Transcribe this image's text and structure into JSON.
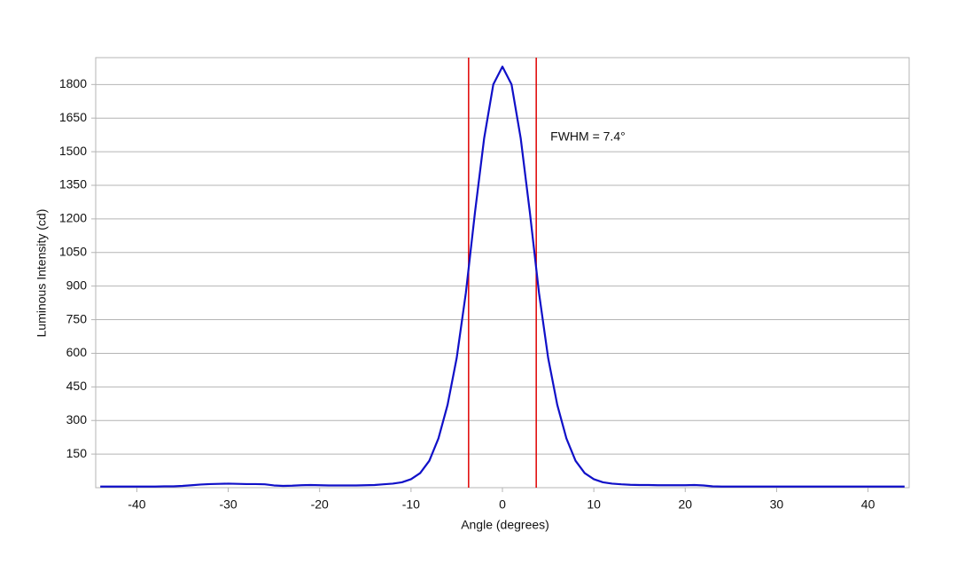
{
  "chart_data": {
    "type": "line",
    "x_label": "Angle (degrees)",
    "y_label": "Luminous Intensity (cd)",
    "x": [
      -44,
      -43,
      -42,
      -41,
      -40,
      -39,
      -38,
      -37,
      -36,
      -35,
      -34,
      -33,
      -32,
      -31,
      -30,
      -29,
      -28,
      -27,
      -26,
      -25,
      -24,
      -23,
      -22,
      -21,
      -20,
      -19,
      -18,
      -17,
      -16,
      -15,
      -14,
      -13,
      -12,
      -11,
      -10,
      -9,
      -8,
      -7,
      -6,
      -5,
      -4,
      -3,
      -2,
      -1,
      0,
      1,
      2,
      3,
      4,
      5,
      6,
      7,
      8,
      9,
      10,
      11,
      12,
      13,
      14,
      15,
      16,
      17,
      18,
      19,
      20,
      21,
      22,
      23,
      24,
      25,
      26,
      27,
      28,
      29,
      30,
      31,
      32,
      33,
      34,
      35,
      36,
      37,
      38,
      39,
      40,
      41,
      42,
      43,
      44
    ],
    "series": [
      {
        "name": "Luminous Intensity",
        "color": "#1010c8",
        "values": [
          5,
          5,
          5,
          5,
          5,
          5,
          5,
          6,
          6,
          8,
          11,
          14,
          16,
          17,
          18,
          17,
          16,
          16,
          15,
          10,
          8,
          9,
          11,
          12,
          11,
          10,
          10,
          10,
          10,
          11,
          12,
          15,
          18,
          24,
          38,
          65,
          120,
          220,
          370,
          580,
          870,
          1230,
          1560,
          1800,
          1880,
          1800,
          1560,
          1230,
          870,
          580,
          370,
          220,
          120,
          65,
          38,
          24,
          18,
          15,
          13,
          12,
          12,
          11,
          11,
          11,
          11,
          12,
          10,
          6,
          5,
          5,
          5,
          5,
          5,
          5,
          5,
          5,
          5,
          5,
          5,
          5,
          5,
          5,
          5,
          5,
          5,
          5,
          5,
          5,
          5
        ]
      }
    ],
    "vlines": [
      -3.7,
      3.7
    ],
    "vline_color": "#e00000",
    "annotation": "FWHM = 7.4°",
    "xlim": [
      -44.5,
      44.5
    ],
    "xticks": [
      -40,
      -30,
      -20,
      -10,
      0,
      10,
      20,
      30,
      40
    ],
    "ylim": [
      0,
      1920
    ],
    "yticks": [
      150,
      300,
      450,
      600,
      750,
      900,
      1050,
      1200,
      1350,
      1500,
      1650,
      1800
    ],
    "grid": true
  }
}
